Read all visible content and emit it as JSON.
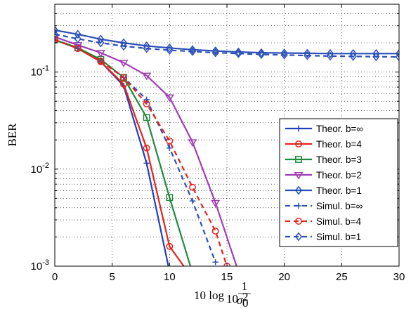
{
  "chart_data": {
    "type": "line",
    "xlabel": "10 log10 1/σ0²",
    "ylabel": "BER",
    "xlim": [
      0,
      30
    ],
    "ylim": [
      0.001,
      0.5
    ],
    "yscale": "log",
    "grid": true,
    "legend_position": "bottom-right",
    "x_ticks": [
      0,
      5,
      10,
      15,
      20,
      25,
      30
    ],
    "y_ticks": [
      {
        "value": 0.1,
        "base": "10",
        "exp": "-1"
      },
      {
        "value": 0.01,
        "base": "10",
        "exp": "-2"
      },
      {
        "value": 0.001,
        "base": "10",
        "exp": "-3"
      }
    ],
    "series": [
      {
        "name": "Theor. b=∞",
        "color": "#1f3fbf",
        "dash": false,
        "marker": "plus",
        "x": [
          0,
          2,
          4,
          6,
          8,
          10
        ],
        "y": [
          0.215,
          0.175,
          0.128,
          0.072,
          0.0115,
          0.00088
        ]
      },
      {
        "name": "Theor. b=4",
        "color": "#e8221b",
        "dash": false,
        "marker": "circle",
        "x": [
          0,
          2,
          4,
          6,
          8,
          10,
          12
        ],
        "y": [
          0.215,
          0.175,
          0.128,
          0.075,
          0.0165,
          0.0016,
          0.00075
        ]
      },
      {
        "name": "Theor. b=3",
        "color": "#1e8a3c",
        "dash": false,
        "marker": "square",
        "x": [
          0,
          2,
          4,
          6,
          8,
          10,
          12
        ],
        "y": [
          0.215,
          0.178,
          0.135,
          0.088,
          0.034,
          0.0051,
          0.00085
        ]
      },
      {
        "name": "Theor. b=2",
        "color": "#a03cb4",
        "dash": false,
        "marker": "triangle-down",
        "x": [
          0,
          2,
          4,
          6,
          8,
          10,
          12,
          14,
          16
        ],
        "y": [
          0.23,
          0.19,
          0.158,
          0.125,
          0.092,
          0.055,
          0.019,
          0.0045,
          0.00088
        ]
      },
      {
        "name": "Theor. b=1",
        "color": "#2b50b8",
        "dash": false,
        "marker": "diamond",
        "x": [
          0,
          2,
          4,
          6,
          8,
          10,
          12,
          14,
          16,
          18,
          20,
          22,
          24,
          26,
          28,
          30
        ],
        "y": [
          0.27,
          0.245,
          0.218,
          0.2,
          0.186,
          0.177,
          0.17,
          0.165,
          0.161,
          0.158,
          0.157,
          0.156,
          0.155,
          0.155,
          0.155,
          0.155
        ]
      },
      {
        "name": "Simul. b=∞",
        "color": "#2b50b8",
        "dash": true,
        "marker": "plus",
        "x": [
          0,
          2,
          4,
          6,
          8,
          10,
          12,
          14
        ],
        "y": [
          0.215,
          0.175,
          0.13,
          0.088,
          0.052,
          0.0165,
          0.0047,
          0.0011
        ]
      },
      {
        "name": "Simul. b=4",
        "color": "#e8221b",
        "dash": true,
        "marker": "circle",
        "x": [
          0,
          2,
          4,
          6,
          8,
          10,
          12,
          14,
          15
        ],
        "y": [
          0.215,
          0.175,
          0.13,
          0.088,
          0.047,
          0.0195,
          0.0065,
          0.0023,
          0.001
        ]
      },
      {
        "name": "Simul. b=1",
        "color": "#2b50b8",
        "dash": true,
        "marker": "diamond",
        "x": [
          0,
          2,
          4,
          6,
          8,
          10,
          12,
          14,
          16,
          18,
          20,
          22,
          24,
          26,
          28,
          30
        ],
        "y": [
          0.245,
          0.22,
          0.2,
          0.185,
          0.175,
          0.168,
          0.163,
          0.158,
          0.155,
          0.152,
          0.15,
          0.148,
          0.146,
          0.145,
          0.144,
          0.143
        ]
      }
    ]
  }
}
